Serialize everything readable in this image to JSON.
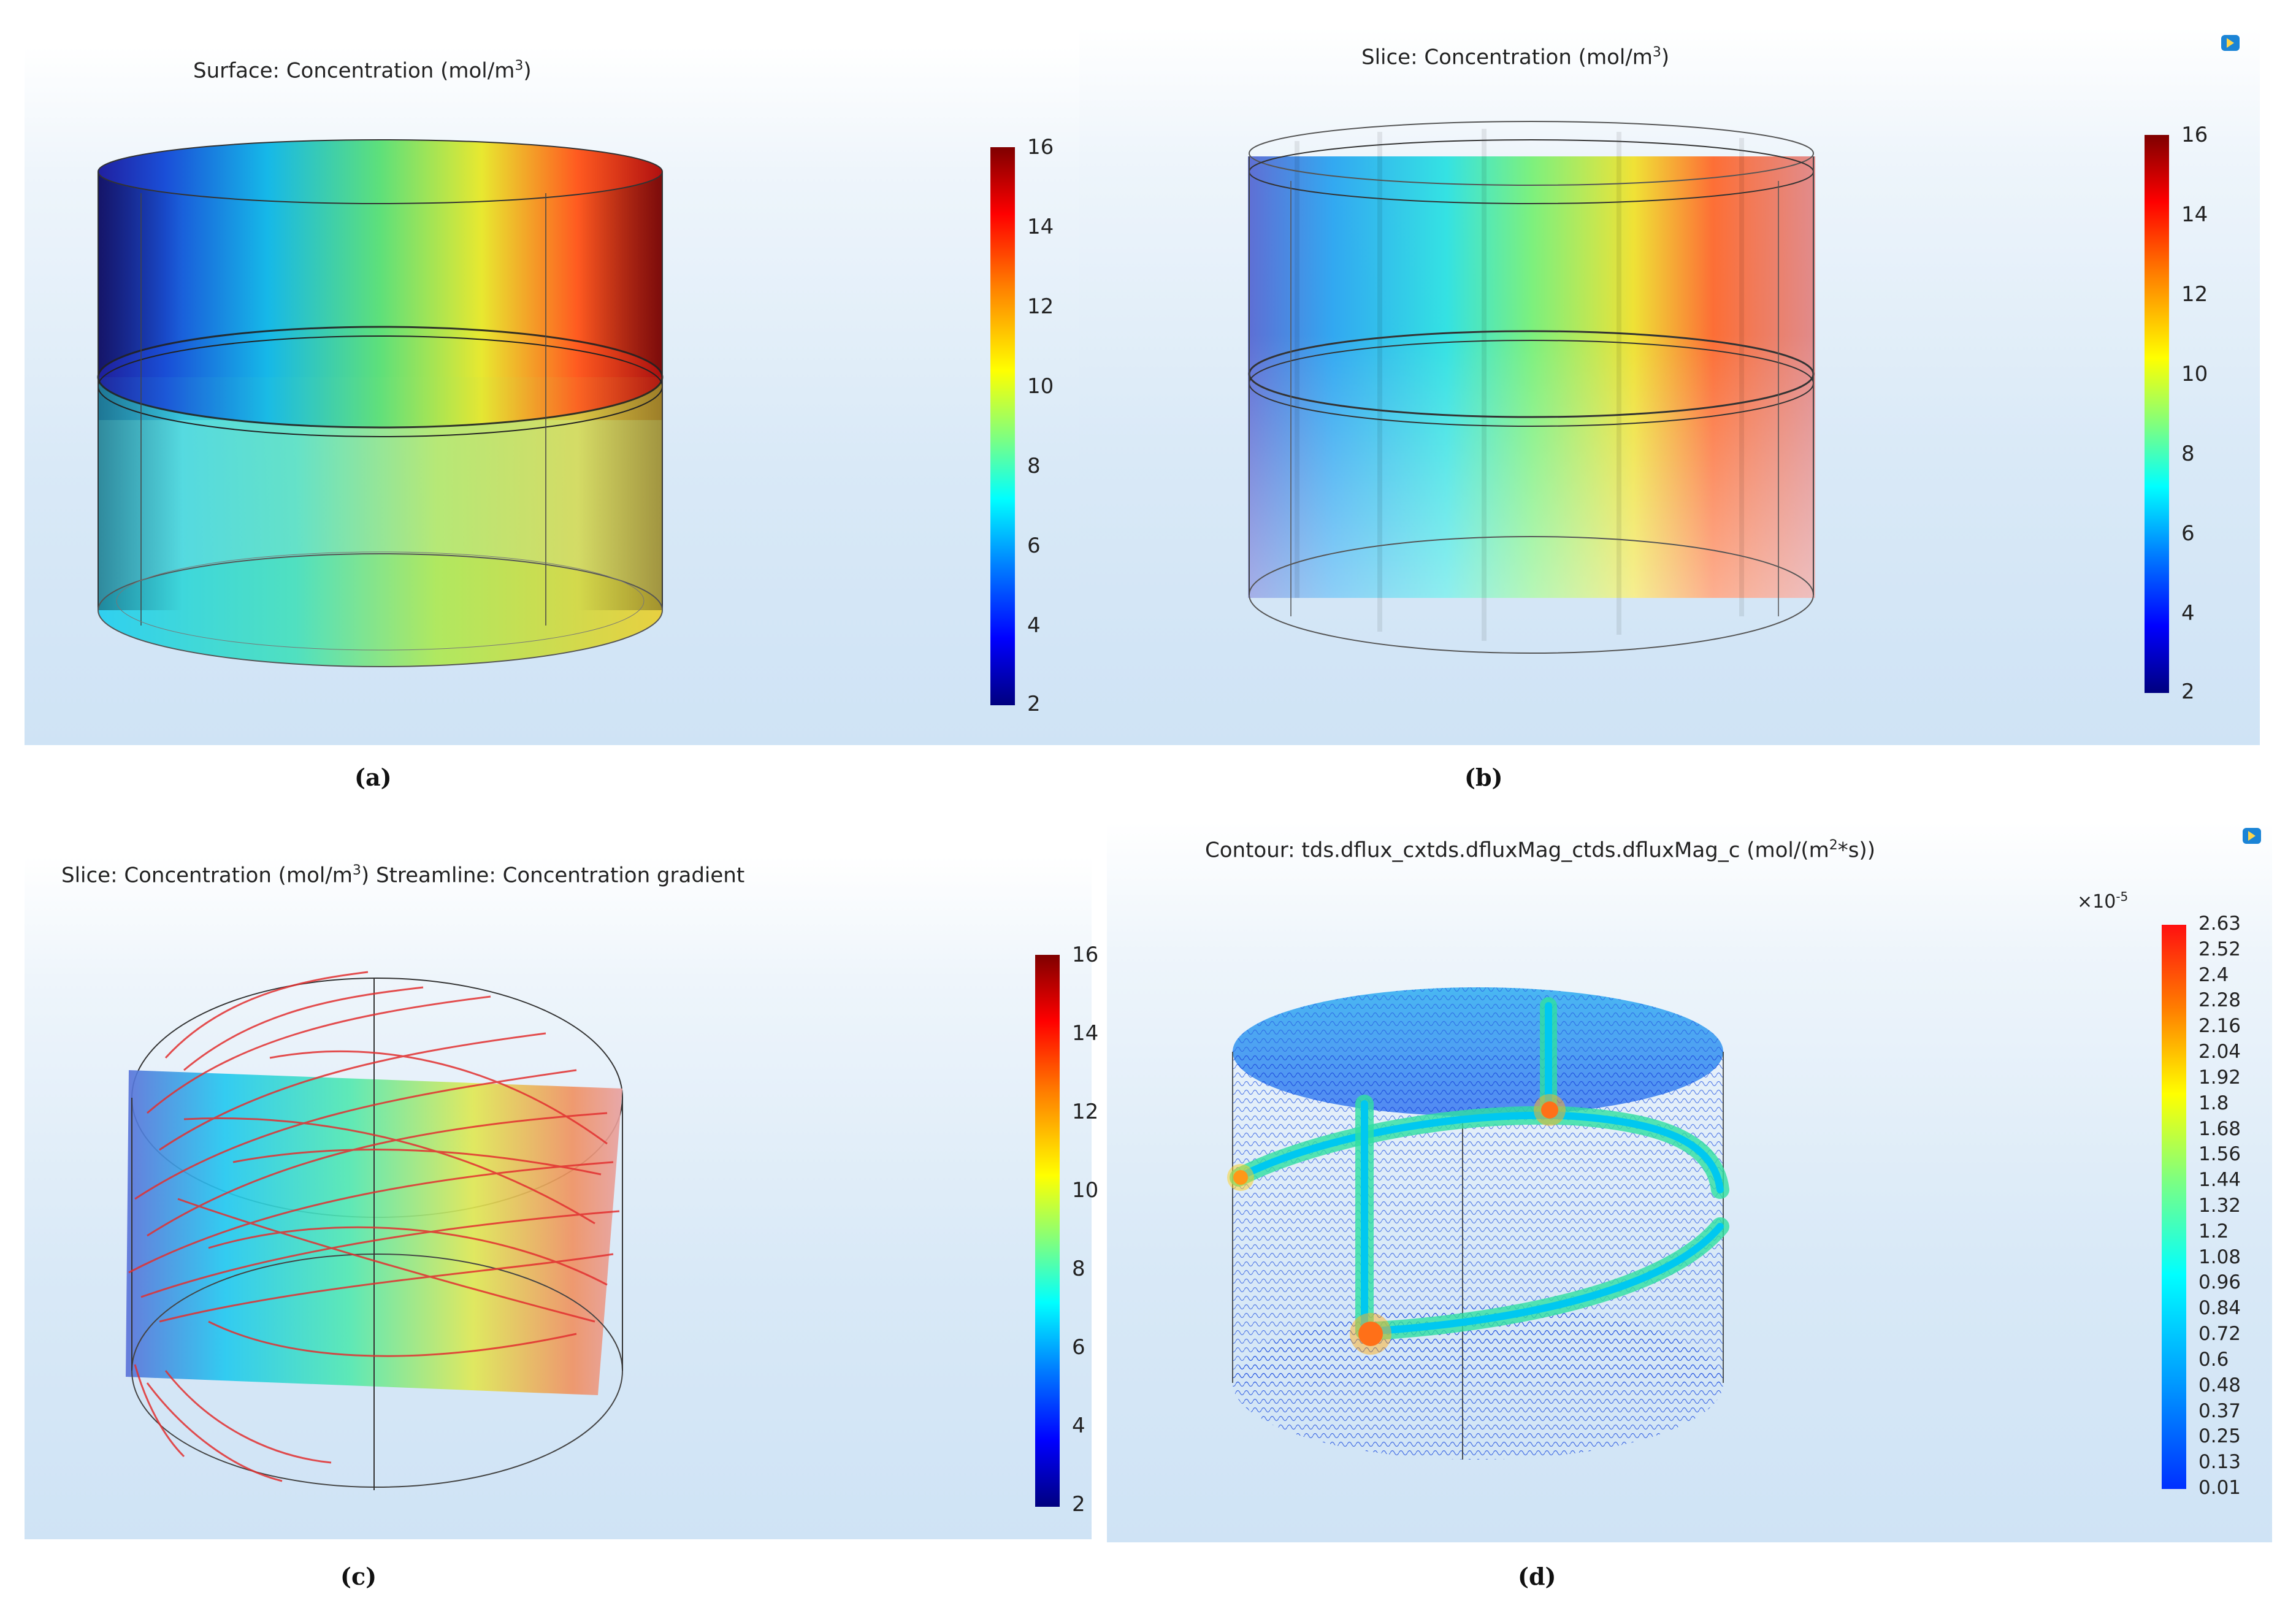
{
  "chart_data": [
    {
      "panel": "a",
      "type": "heatmap",
      "plot": "Surface",
      "title": "Surface: Concentration (mol/m",
      "title_sup": "3",
      "title_end": ")",
      "caption": "(a)",
      "colorbar": {
        "min": 2,
        "max": 16,
        "ticks": [
          "16",
          "14",
          "12",
          "10",
          "8",
          "6",
          "4",
          "2"
        ],
        "tick_values": [
          16,
          14,
          12,
          10,
          8,
          6,
          4,
          2
        ]
      }
    },
    {
      "panel": "b",
      "type": "heatmap",
      "plot": "Slice",
      "title": "Slice: Concentration (mol/m",
      "title_sup": "3",
      "title_end": ")",
      "caption": "(b)",
      "colorbar": {
        "min": 2,
        "max": 16,
        "ticks": [
          "16",
          "14",
          "12",
          "10",
          "8",
          "6",
          "4",
          "2"
        ],
        "tick_values": [
          16,
          14,
          12,
          10,
          8,
          6,
          4,
          2
        ]
      }
    },
    {
      "panel": "c",
      "type": "heatmap",
      "plot": "Slice + Streamline",
      "title": "Slice: Concentration (mol/m",
      "title_sup": "3",
      "title_end": ")  Streamline: Concentration gradient",
      "caption": "(c)",
      "colorbar": {
        "min": 2,
        "max": 16,
        "ticks": [
          "16",
          "14",
          "12",
          "10",
          "8",
          "6",
          "4",
          "2"
        ],
        "tick_values": [
          16,
          14,
          12,
          10,
          8,
          6,
          4,
          2
        ]
      }
    },
    {
      "panel": "d",
      "type": "heatmap",
      "plot": "Contour",
      "title": "Contour: tds.dflux_cxtds.dfluxMag_ctds.dfluxMag_c (mol/(m",
      "title_sup": "2",
      "title_end": "*s))",
      "caption": "(d)",
      "colorbar": {
        "min": 0.01,
        "max": 2.63,
        "scale_prefix": "×10",
        "scale_exp": "-5",
        "ticks": [
          "2.63",
          "2.52",
          "2.4",
          "2.28",
          "2.16",
          "2.04",
          "1.92",
          "1.8",
          "1.68",
          "1.56",
          "1.44",
          "1.32",
          "1.2",
          "1.08",
          "0.96",
          "0.84",
          "0.72",
          "0.6",
          "0.48",
          "0.37",
          "0.25",
          "0.13",
          "0.01"
        ]
      }
    }
  ],
  "colors": {
    "rainbow": [
      "#00007f",
      "#0000ff",
      "#007fff",
      "#00ffff",
      "#7fff7f",
      "#ffff00",
      "#ff7f00",
      "#ff0000",
      "#7f0000"
    ],
    "flux": [
      "#0040ff",
      "#00a0ff",
      "#00ffff",
      "#7fff7f",
      "#ffff00",
      "#ff7f00",
      "#ff0000"
    ],
    "streamline": "#e23030",
    "contour": "#1f4fe0"
  }
}
